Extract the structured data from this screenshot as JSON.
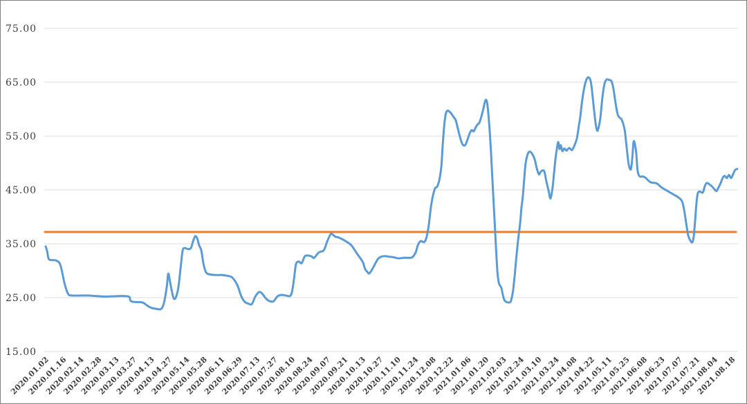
{
  "chart_data": {
    "type": "line",
    "title": "",
    "legend_position": "none",
    "background": "#FFFFFF",
    "frame_border_color": "#7F7F7F",
    "grid": {
      "show_horizontal": true,
      "show_vertical": false,
      "color": "#DCDCDC"
    },
    "y_axis": {
      "min": 15,
      "max": 75,
      "tick_step": 10,
      "tick_labels": [
        "15.00",
        "25.00",
        "35.00",
        "45.00",
        "55.00",
        "65.00",
        "75.00"
      ],
      "label_color": "#3B3B3B"
    },
    "x_axis": {
      "label_rotation_deg": -45,
      "label_color": "#3B3B3B",
      "tick_labels": [
        "2020.01.02",
        "2020.01.16",
        "2020.02.14",
        "2020.02.28",
        "2020.03.13",
        "2020.03.27",
        "2020.04.13",
        "2020.04.27",
        "2020.05.14",
        "2020.05.28",
        "2020.06.11",
        "2020.06.29",
        "2020.07.13",
        "2020.07.27",
        "2020.08.10",
        "2020.08.24",
        "2020.09.07",
        "2020.09.21",
        "2020.10.13",
        "2020.10.27",
        "2020.11.10",
        "2020.11.24",
        "2020.12.08",
        "2020.12.22",
        "2021.01.06",
        "2021.01.20",
        "2021.02.03",
        "2021.02.24",
        "2021.03.10",
        "2021.03.24",
        "2021.04.08",
        "2021.04.22",
        "2021.05.11",
        "2021.05.25",
        "2021.06.08",
        "2021.06.23",
        "2021.07.07",
        "2021.07.21",
        "2021.08.04",
        "2021.08.18"
      ]
    },
    "series": [
      {
        "name": "price-line",
        "color": "#5B9BD5",
        "stroke_width": 3,
        "smooth": true,
        "x_unit": "x-axis tick index (fractional values fall between dated ticks)",
        "points": [
          [
            0,
            34.5
          ],
          [
            0.08,
            33.7
          ],
          [
            0.16,
            32.3
          ],
          [
            0.28,
            32
          ],
          [
            0.59,
            31.9
          ],
          [
            0.79,
            31.4
          ],
          [
            0.9,
            30.3
          ],
          [
            1.06,
            27.8
          ],
          [
            1.26,
            25.8
          ],
          [
            1.49,
            25.4
          ],
          [
            2.36,
            25.4
          ],
          [
            3.34,
            25.2
          ],
          [
            4.13,
            25.3
          ],
          [
            4.72,
            25.2
          ],
          [
            4.87,
            24.3
          ],
          [
            5.5,
            24.1
          ],
          [
            5.78,
            23.5
          ],
          [
            6.01,
            23.1
          ],
          [
            6.33,
            22.9
          ],
          [
            6.56,
            22.9
          ],
          [
            6.72,
            24
          ],
          [
            6.88,
            27
          ],
          [
            6.96,
            29.4
          ],
          [
            7.03,
            28.6
          ],
          [
            7.15,
            26.5
          ],
          [
            7.27,
            24.9
          ],
          [
            7.39,
            25
          ],
          [
            7.54,
            26.9
          ],
          [
            7.66,
            30.3
          ],
          [
            7.78,
            33.7
          ],
          [
            7.9,
            34.2
          ],
          [
            8.09,
            34
          ],
          [
            8.25,
            34.2
          ],
          [
            8.37,
            35.4
          ],
          [
            8.49,
            36.4
          ],
          [
            8.61,
            36
          ],
          [
            8.72,
            34.7
          ],
          [
            8.84,
            33.8
          ],
          [
            8.96,
            31.4
          ],
          [
            9.08,
            29.9
          ],
          [
            9.23,
            29.4
          ],
          [
            9.63,
            29.2
          ],
          [
            10.02,
            29.2
          ],
          [
            10.41,
            29
          ],
          [
            10.61,
            28.7
          ],
          [
            10.88,
            27.4
          ],
          [
            11.12,
            25.2
          ],
          [
            11.32,
            24.2
          ],
          [
            11.51,
            23.9
          ],
          [
            11.71,
            23.8
          ],
          [
            11.91,
            25.2
          ],
          [
            12.1,
            26
          ],
          [
            12.26,
            25.9
          ],
          [
            12.5,
            24.9
          ],
          [
            12.69,
            24.4
          ],
          [
            12.93,
            24.3
          ],
          [
            13.16,
            25.2
          ],
          [
            13.36,
            25.5
          ],
          [
            13.63,
            25.4
          ],
          [
            13.87,
            25.3
          ],
          [
            13.99,
            26
          ],
          [
            14.11,
            28.5
          ],
          [
            14.22,
            31.2
          ],
          [
            14.38,
            31.7
          ],
          [
            14.54,
            31.4
          ],
          [
            14.73,
            32.7
          ],
          [
            14.97,
            32.8
          ],
          [
            15.13,
            32.6
          ],
          [
            15.25,
            32.4
          ],
          [
            15.52,
            33.4
          ],
          [
            15.8,
            33.8
          ],
          [
            15.99,
            35.4
          ],
          [
            16.19,
            36.8
          ],
          [
            16.31,
            36.7
          ],
          [
            16.46,
            36.3
          ],
          [
            16.62,
            36.2
          ],
          [
            16.82,
            35.9
          ],
          [
            17.09,
            35.4
          ],
          [
            17.37,
            34.7
          ],
          [
            17.68,
            33.2
          ],
          [
            18,
            31.7
          ],
          [
            18.15,
            30.3
          ],
          [
            18.27,
            29.8
          ],
          [
            18.39,
            29.5
          ],
          [
            18.59,
            30.5
          ],
          [
            18.86,
            32.1
          ],
          [
            19.06,
            32.6
          ],
          [
            19.29,
            32.7
          ],
          [
            19.53,
            32.6
          ],
          [
            19.76,
            32.5
          ],
          [
            20.04,
            32.3
          ],
          [
            20.35,
            32.4
          ],
          [
            20.63,
            32.4
          ],
          [
            20.83,
            32.5
          ],
          [
            21.02,
            33.4
          ],
          [
            21.14,
            34.7
          ],
          [
            21.3,
            35.5
          ],
          [
            21.49,
            35.3
          ],
          [
            21.61,
            35.9
          ],
          [
            21.73,
            37.7
          ],
          [
            21.81,
            39.7
          ],
          [
            21.89,
            41.9
          ],
          [
            22,
            43.9
          ],
          [
            22.12,
            45.3
          ],
          [
            22.24,
            45.6
          ],
          [
            22.36,
            46.8
          ],
          [
            22.48,
            49.4
          ],
          [
            22.55,
            53
          ],
          [
            22.63,
            56.5
          ],
          [
            22.71,
            58.8
          ],
          [
            22.79,
            59.6
          ],
          [
            22.87,
            59.7
          ],
          [
            22.95,
            59.5
          ],
          [
            23.06,
            59.1
          ],
          [
            23.18,
            58.5
          ],
          [
            23.3,
            57.9
          ],
          [
            23.46,
            55.8
          ],
          [
            23.61,
            54
          ],
          [
            23.73,
            53.3
          ],
          [
            23.85,
            53.4
          ],
          [
            23.97,
            54.4
          ],
          [
            24.09,
            55.5
          ],
          [
            24.2,
            56.1
          ],
          [
            24.32,
            55.9
          ],
          [
            24.48,
            56.9
          ],
          [
            24.64,
            57.5
          ],
          [
            24.75,
            58.6
          ],
          [
            24.87,
            60.1
          ],
          [
            24.95,
            61.3
          ],
          [
            25.03,
            61.7
          ],
          [
            25.11,
            60.5
          ],
          [
            25.19,
            57.5
          ],
          [
            25.27,
            53.7
          ],
          [
            25.34,
            49.5
          ],
          [
            25.42,
            44.5
          ],
          [
            25.5,
            39.5
          ],
          [
            25.58,
            34.5
          ],
          [
            25.66,
            30
          ],
          [
            25.74,
            27.8
          ],
          [
            25.82,
            27.2
          ],
          [
            25.89,
            26.8
          ],
          [
            25.97,
            25.6
          ],
          [
            26.05,
            24.6
          ],
          [
            26.17,
            24.2
          ],
          [
            26.29,
            24.1
          ],
          [
            26.41,
            24.2
          ],
          [
            26.48,
            25
          ],
          [
            26.56,
            26.5
          ],
          [
            26.64,
            28.9
          ],
          [
            26.72,
            31.8
          ],
          [
            26.8,
            34.5
          ],
          [
            26.88,
            36.8
          ],
          [
            26.96,
            39
          ],
          [
            27.03,
            41.7
          ],
          [
            27.11,
            43.8
          ],
          [
            27.19,
            47.2
          ],
          [
            27.27,
            50
          ],
          [
            27.39,
            51.7
          ],
          [
            27.5,
            52.1
          ],
          [
            27.62,
            51.8
          ],
          [
            27.78,
            50.7
          ],
          [
            27.9,
            49
          ],
          [
            28.02,
            47.9
          ],
          [
            28.09,
            48.2
          ],
          [
            28.21,
            48.6
          ],
          [
            28.33,
            48.4
          ],
          [
            28.45,
            46.5
          ],
          [
            28.57,
            44.9
          ],
          [
            28.68,
            43.4
          ],
          [
            28.8,
            45.5
          ],
          [
            28.88,
            48.1
          ],
          [
            28.96,
            50.7
          ],
          [
            29.04,
            52.6
          ],
          [
            29.12,
            53.9
          ],
          [
            29.19,
            52.6
          ],
          [
            29.27,
            53.3
          ],
          [
            29.35,
            52.2
          ],
          [
            29.47,
            52.7
          ],
          [
            29.59,
            52.3
          ],
          [
            29.74,
            52.8
          ],
          [
            29.9,
            52.4
          ],
          [
            30.06,
            53.4
          ],
          [
            30.18,
            54.6
          ],
          [
            30.29,
            56.9
          ],
          [
            30.37,
            58.5
          ],
          [
            30.45,
            60.9
          ],
          [
            30.57,
            63.5
          ],
          [
            30.69,
            65.2
          ],
          [
            30.81,
            65.9
          ],
          [
            30.92,
            65.6
          ],
          [
            31,
            64.5
          ],
          [
            31.12,
            60.9
          ],
          [
            31.24,
            57.4
          ],
          [
            31.32,
            56.1
          ],
          [
            31.39,
            56.3
          ],
          [
            31.51,
            58.3
          ],
          [
            31.63,
            62.2
          ],
          [
            31.75,
            64.7
          ],
          [
            31.87,
            65.5
          ],
          [
            32.02,
            65.4
          ],
          [
            32.14,
            65.2
          ],
          [
            32.26,
            63.7
          ],
          [
            32.38,
            61
          ],
          [
            32.5,
            59
          ],
          [
            32.61,
            58.4
          ],
          [
            32.73,
            58
          ],
          [
            32.89,
            56.2
          ],
          [
            33.01,
            52.8
          ],
          [
            33.12,
            49.8
          ],
          [
            33.24,
            48.8
          ],
          [
            33.32,
            50.7
          ],
          [
            33.4,
            53.9
          ],
          [
            33.48,
            53.4
          ],
          [
            33.56,
            51.5
          ],
          [
            33.63,
            48.5
          ],
          [
            33.75,
            47.5
          ],
          [
            33.91,
            47.5
          ],
          [
            34.07,
            47.3
          ],
          [
            34.22,
            46.8
          ],
          [
            34.38,
            46.4
          ],
          [
            34.62,
            46.3
          ],
          [
            34.77,
            46.1
          ],
          [
            34.97,
            45.5
          ],
          [
            35.28,
            44.9
          ],
          [
            35.64,
            44.2
          ],
          [
            35.95,
            43.6
          ],
          [
            36.15,
            42.9
          ],
          [
            36.27,
            41.3
          ],
          [
            36.39,
            38.8
          ],
          [
            36.5,
            36.6
          ],
          [
            36.62,
            35.6
          ],
          [
            36.74,
            35.3
          ],
          [
            36.82,
            36.5
          ],
          [
            36.9,
            39.5
          ],
          [
            36.97,
            42.5
          ],
          [
            37.05,
            44.4
          ],
          [
            37.17,
            44.7
          ],
          [
            37.33,
            44.5
          ],
          [
            37.45,
            45.7
          ],
          [
            37.56,
            46.3
          ],
          [
            37.72,
            46
          ],
          [
            37.84,
            45.7
          ],
          [
            38,
            45.1
          ],
          [
            38.11,
            44.8
          ],
          [
            38.23,
            45.5
          ],
          [
            38.35,
            46.3
          ],
          [
            38.47,
            47.3
          ],
          [
            38.58,
            47.6
          ],
          [
            38.7,
            47.2
          ],
          [
            38.82,
            47.8
          ],
          [
            38.94,
            47.2
          ],
          [
            39.06,
            48
          ],
          [
            39.17,
            48.7
          ],
          [
            39.29,
            48.9
          ]
        ]
      },
      {
        "name": "reference-line",
        "color": "#ED7D31",
        "stroke_width": 3,
        "value": 37.2
      }
    ]
  }
}
